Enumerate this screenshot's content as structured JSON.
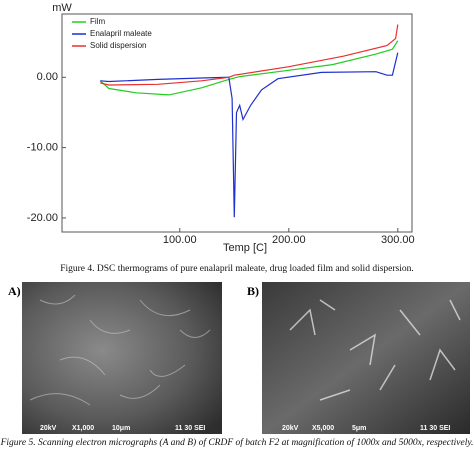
{
  "chart_data": {
    "type": "line",
    "y_label": "mW",
    "x_label": "Temp [C]",
    "xlim": [
      -8,
      313
    ],
    "ylim": [
      -22,
      9
    ],
    "xticks": [
      {
        "value": 100,
        "label": "100.00"
      },
      {
        "value": 200,
        "label": "200.00"
      },
      {
        "value": 300,
        "label": "300.00"
      }
    ],
    "yticks": [
      {
        "value": 0,
        "label": "0.00"
      },
      {
        "value": -10,
        "label": "-10.00"
      },
      {
        "value": -20,
        "label": "-20.00"
      }
    ],
    "legend": "upper left",
    "series": [
      {
        "name": "Film",
        "color": "#22cc22",
        "x": [
          27,
          35,
          60,
          90,
          120,
          145,
          155,
          190,
          240,
          280,
          295,
          300
        ],
        "values": [
          -0.5,
          -1.6,
          -2.2,
          -2.5,
          -1.5,
          -0.3,
          0.1,
          0.8,
          1.8,
          3.3,
          4,
          5.2
        ]
      },
      {
        "name": "Enalapril maleate",
        "color": "#1f2fd0",
        "x": [
          27,
          35,
          80,
          120,
          145,
          148,
          150,
          152,
          155,
          158,
          165,
          175,
          190,
          230,
          280,
          290,
          295,
          300
        ],
        "values": [
          -0.5,
          -0.6,
          -0.3,
          -0.1,
          0,
          -3,
          -19.9,
          -5,
          -4,
          -6,
          -4,
          -1.8,
          -0.2,
          0.7,
          0.8,
          0.3,
          0.3,
          3.5
        ]
      },
      {
        "name": "Solid dispersion",
        "color": "#e83030",
        "x": [
          27,
          35,
          80,
          120,
          145,
          150,
          200,
          250,
          290,
          298,
          300
        ],
        "values": [
          -0.8,
          -1.1,
          -1,
          -0.5,
          0,
          0.3,
          1.5,
          3,
          4.5,
          5.5,
          7.5
        ]
      }
    ]
  },
  "figure4_caption": "Figure 4. DSC thermograms of pure enalapril maleate, drug loaded film and solid dispersion.",
  "panels": [
    {
      "label": "A)",
      "scale_bar": [
        "20kV",
        "X1,000",
        "10μm",
        "11 30 SEI"
      ]
    },
    {
      "label": "B)",
      "scale_bar": [
        "20kV",
        "X5,000",
        "5μm",
        "11 30 SEI"
      ]
    }
  ],
  "figure5_caption": "Figure 5. Scanning electron micrographs (A and B) of CRDF of batch F2 at magnification of 1000x and 5000x, respectively."
}
